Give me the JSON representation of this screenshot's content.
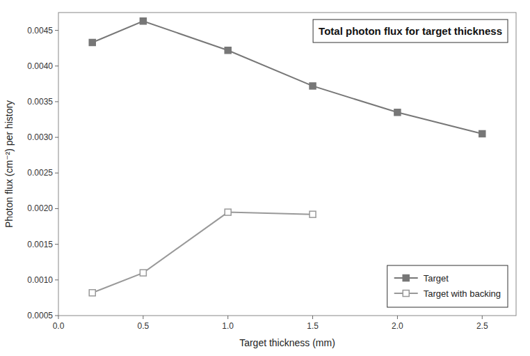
{
  "chart_data": {
    "type": "line",
    "title": "Total photon flux for target thickness",
    "xlabel": "Target thickness (mm)",
    "ylabel": "Photon flux (cm⁻²) per history",
    "xlim": [
      0.0,
      2.7
    ],
    "ylim": [
      0.0005,
      0.00475
    ],
    "xticks": [
      {
        "value": 0.0,
        "label": "0.0"
      },
      0.5,
      {
        "value": 1.0,
        "label": "1.0"
      },
      1.5,
      {
        "value": 2.0,
        "label": "2.0"
      },
      2.5
    ],
    "yticks": [
      0.0005,
      {
        "value": 0.001,
        "label": "0.0010"
      },
      0.0015,
      {
        "value": 0.002,
        "label": "0.0020"
      },
      0.0025,
      {
        "value": 0.003,
        "label": "0.0030"
      },
      0.0035,
      {
        "value": 0.004,
        "label": "0.0040"
      },
      0.0045
    ],
    "grid": false,
    "legend": "lower right",
    "series": [
      {
        "name": "Target",
        "color": "#777777",
        "marker": "filled-square",
        "x": [
          0.2,
          0.5,
          1.0,
          1.5,
          2.0,
          2.5
        ],
        "values": [
          0.00433,
          0.00463,
          0.00422,
          0.00372,
          0.00335,
          0.00305
        ]
      },
      {
        "name": "Target with backing",
        "color": "#999999",
        "marker": "open-square",
        "x": [
          0.2,
          0.5,
          1.0,
          1.5
        ],
        "values": [
          0.00082,
          0.0011,
          0.00195,
          0.00192
        ]
      }
    ]
  }
}
